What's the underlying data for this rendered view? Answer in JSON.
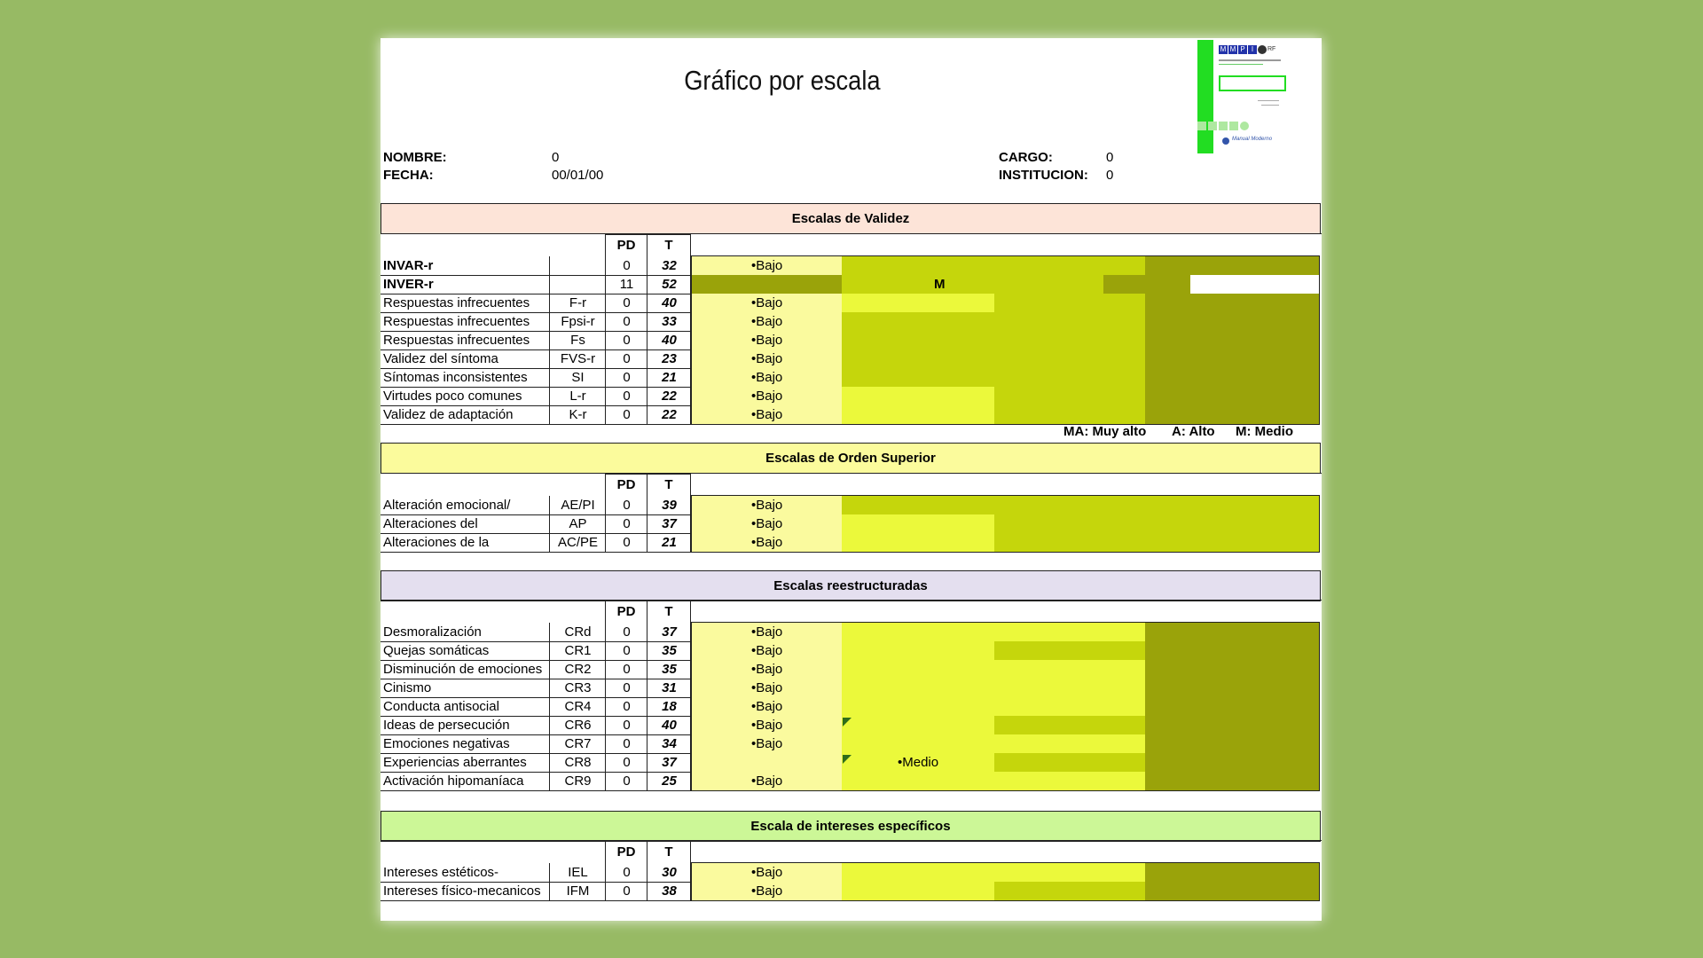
{
  "title": "Gráfico por escala",
  "header": {
    "nombre_label": "NOMBRE:",
    "nombre_value": "0",
    "fecha_label": "FECHA:",
    "fecha_value": "00/01/00",
    "cargo_label": "CARGO:",
    "cargo_value": "0",
    "institucion_label": "INSTITUCION:",
    "institucion_value": "0"
  },
  "col_pd": "PD",
  "col_t": "T",
  "colors": {
    "z1": "#fafa9e",
    "z2": "#ebf93b",
    "z3": "#c5d60c",
    "z4": "#9aa30a"
  },
  "sections": [
    {
      "title": "Escalas de Validez",
      "bg": "#fde4d8",
      "rows": [
        {
          "name": "INVAR-r",
          "abbr": "",
          "pd": "0",
          "t": "32",
          "level": "•Bajo",
          "bold": true
        },
        {
          "name": "INVER-r",
          "abbr": "",
          "pd": "11",
          "t": "52",
          "level": "M",
          "bold": true
        },
        {
          "name": "  Respuestas infrecuentes",
          "abbr": "F-r",
          "pd": "0",
          "t": "40",
          "level": "•Bajo"
        },
        {
          "name": "Respuestas infrecuentes",
          "abbr": "Fpsi-r",
          "pd": "0",
          "t": "33",
          "level": "•Bajo"
        },
        {
          "name": "Respuestas infrecuentes",
          "abbr": "Fs",
          "pd": "0",
          "t": "40",
          "level": "•Bajo"
        },
        {
          "name": "Validez del síntoma",
          "abbr": "FVS-r",
          "pd": "0",
          "t": "23",
          "level": "•Bajo"
        },
        {
          "name": "Síntomas inconsistentes",
          "abbr": "SI",
          "pd": "0",
          "t": "21",
          "level": "•Bajo"
        },
        {
          "name": "Virtudes poco comunes",
          "abbr": "L-r",
          "pd": "0",
          "t": "22",
          "level": "•Bajo"
        },
        {
          "name": "Validez de adaptación",
          "abbr": "K-r",
          "pd": "0",
          "t": "22",
          "level": "•Bajo"
        }
      ]
    },
    {
      "title": "Escalas de Orden Superior",
      "bg": "#fbfb9c",
      "rows": [
        {
          "name": "Alteración emocional/",
          "abbr": "AE/PI",
          "pd": "0",
          "t": "39",
          "level": "•Bajo"
        },
        {
          "name": "Alteraciones del",
          "abbr": "AP",
          "pd": "0",
          "t": "37",
          "level": "•Bajo"
        },
        {
          "name": "Alteraciones de la",
          "abbr": "AC/PE",
          "pd": "0",
          "t": "21",
          "level": "•Bajo"
        }
      ]
    },
    {
      "title": "Escalas reestructuradas",
      "bg": "#e4dfef",
      "rows": [
        {
          "name": "Desmoralización",
          "abbr": "CRd",
          "pd": "0",
          "t": "37",
          "level": "•Bajo"
        },
        {
          "name": "Quejas somáticas",
          "abbr": "CR1",
          "pd": "0",
          "t": "35",
          "level": "•Bajo"
        },
        {
          "name": "Disminución de emociones",
          "abbr": "CR2",
          "pd": "0",
          "t": "35",
          "level": "•Bajo"
        },
        {
          "name": "Cinismo",
          "abbr": "CR3",
          "pd": "0",
          "t": "31",
          "level": "•Bajo"
        },
        {
          "name": "Conducta antisocial",
          "abbr": "CR4",
          "pd": "0",
          "t": "18",
          "level": "•Bajo"
        },
        {
          "name": "Ideas de persecución",
          "abbr": "CR6",
          "pd": "0",
          "t": "40",
          "level": "•Bajo"
        },
        {
          "name": "Emociones negativas",
          "abbr": "CR7",
          "pd": "0",
          "t": "34",
          "level": "•Bajo"
        },
        {
          "name": "Experiencias aberrantes",
          "abbr": "CR8",
          "pd": "0",
          "t": "37",
          "level": "•Medio"
        },
        {
          "name": "Activación hipomaníaca",
          "abbr": "CR9",
          "pd": "0",
          "t": "25",
          "level": "•Bajo"
        }
      ]
    },
    {
      "title": "Escala de intereses específicos",
      "bg": "#ccf797",
      "rows": [
        {
          "name": "Intereses estéticos-",
          "abbr": "IEL",
          "pd": "0",
          "t": "30",
          "level": "•Bajo"
        },
        {
          "name": "Intereses físico-mecanicos",
          "abbr": "IFM",
          "pd": "0",
          "t": "38",
          "level": "•Bajo"
        }
      ]
    }
  ],
  "legend": {
    "ma": "MA: Muy alto",
    "a": "A: Alto",
    "m": "M: Medio"
  },
  "logo": {
    "letters": [
      "M",
      "M",
      "P",
      "I"
    ],
    "suffix": "RF",
    "publisher": "Manual Moderno"
  }
}
